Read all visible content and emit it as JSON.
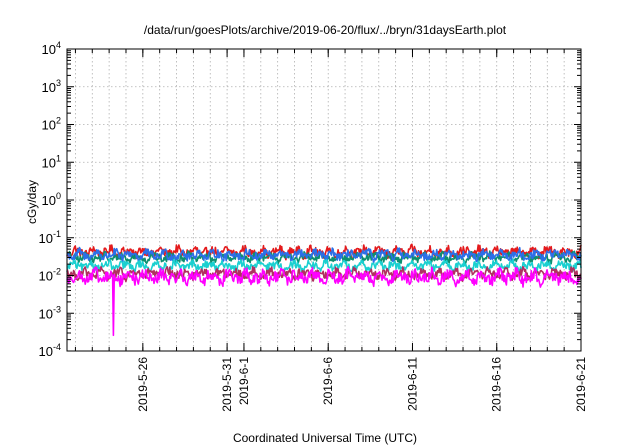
{
  "chart_data": {
    "type": "line",
    "title": "/data/run/goesPlots/archive/2019-06-20/flux/../bryn/31daysEarth.plot",
    "xlabel": "Coordinated Universal Time (UTC)",
    "ylabel": "cGy/day",
    "yscale": "log",
    "ylim": [
      0.0001,
      10000
    ],
    "y_ticks": [
      {
        "value": 0.0001,
        "mantissa": "10",
        "exp": "-4"
      },
      {
        "value": 0.001,
        "mantissa": "10",
        "exp": "-3"
      },
      {
        "value": 0.01,
        "mantissa": "10",
        "exp": "-2"
      },
      {
        "value": 0.1,
        "mantissa": "10",
        "exp": "-1"
      },
      {
        "value": 1,
        "mantissa": "10",
        "exp": "0"
      },
      {
        "value": 10,
        "mantissa": "10",
        "exp": "1"
      },
      {
        "value": 100,
        "mantissa": "10",
        "exp": "2"
      },
      {
        "value": 1000,
        "mantissa": "10",
        "exp": "3"
      },
      {
        "value": 10000,
        "mantissa": "10",
        "exp": "4"
      }
    ],
    "xlim": [
      "2019-05-21 12:00",
      "2019-06-21 00:00"
    ],
    "x_ticks": [
      {
        "date": "2019-05-26",
        "label": "2019-5-26"
      },
      {
        "date": "2019-05-31",
        "label": "2019-5-31"
      },
      {
        "date": "2019-06-01",
        "label": "2019-6-1"
      },
      {
        "date": "2019-06-06",
        "label": "2019-6-6"
      },
      {
        "date": "2019-06-11",
        "label": "2019-6-11"
      },
      {
        "date": "2019-06-16",
        "label": "2019-6-16"
      },
      {
        "date": "2019-06-21",
        "label": "2019-6-21"
      }
    ],
    "grid": true,
    "series": [
      {
        "color": "#e41a1c",
        "level": 0.042,
        "noise": 0.22,
        "peak": 0.1
      },
      {
        "color": "#0d8f6f",
        "level": 0.03,
        "noise": 0.2,
        "peak": 0.07
      },
      {
        "color": "#2c6fe8",
        "level": 0.035,
        "noise": 0.22,
        "peak": 0.085
      },
      {
        "color": "#1ad0d0",
        "level": 0.018,
        "noise": 0.2,
        "peak": 0.04
      },
      {
        "color": "#b03060",
        "level": 0.011,
        "noise": 0.22,
        "peak": 0.03
      },
      {
        "color": "#ff00ff",
        "level": 0.009,
        "noise": 0.3,
        "peak": 0.025,
        "dip": {
          "date": "2019-05-24 06:00",
          "value": 0.00026
        }
      }
    ]
  }
}
